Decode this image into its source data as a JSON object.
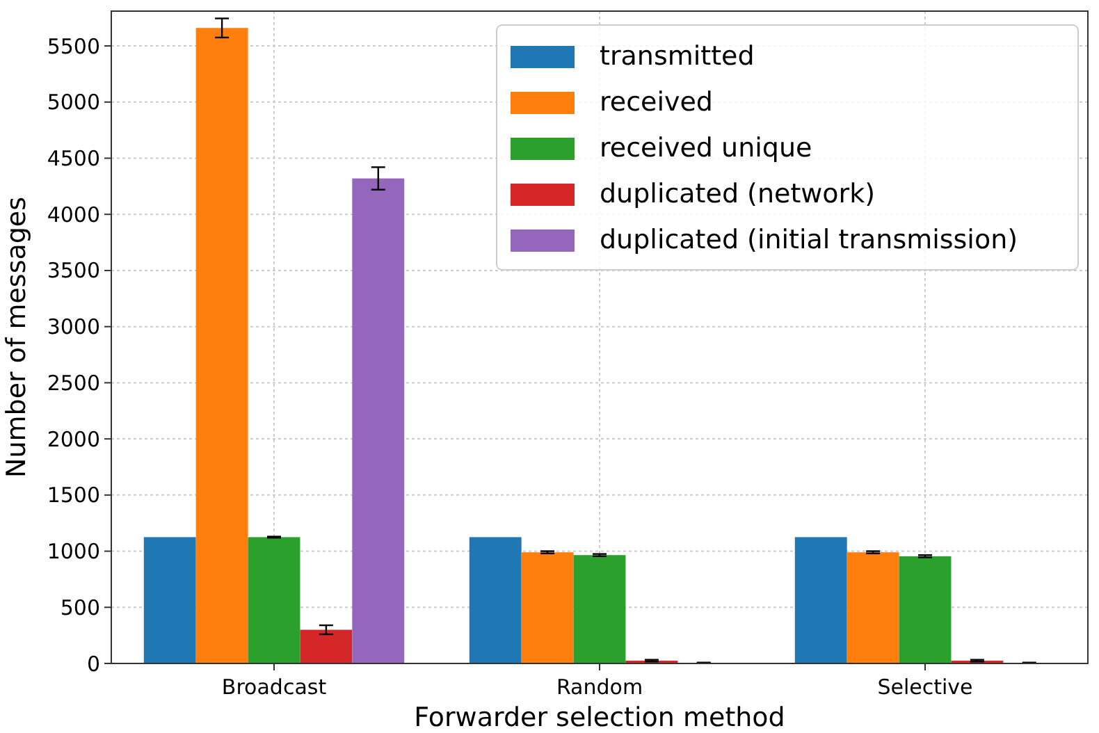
{
  "chart_data": {
    "type": "bar",
    "xlabel": "Forwarder selection method",
    "ylabel": "Number of messages",
    "categories": [
      "Broadcast",
      "Random",
      "Selective"
    ],
    "series": [
      {
        "name": "transmitted",
        "color": "#1f77b4",
        "values": [
          1125,
          1125,
          1125
        ]
      },
      {
        "name": "received",
        "color": "#ff7f0e",
        "values": [
          5660,
          990,
          990
        ],
        "errors": [
          85,
          10,
          10
        ]
      },
      {
        "name": "received unique",
        "color": "#2ca02c",
        "values": [
          1125,
          965,
          955
        ],
        "errors": [
          5,
          10,
          10
        ]
      },
      {
        "name": "duplicated (network)",
        "color": "#d62728",
        "values": [
          300,
          25,
          25
        ],
        "errors": [
          40,
          8,
          8
        ]
      },
      {
        "name": "duplicated (initial transmission)",
        "color": "#9467bd",
        "values": [
          4320,
          5,
          5
        ],
        "errors": [
          100,
          3,
          3
        ]
      }
    ],
    "ylim": [
      0,
      5810
    ],
    "yticks": [
      0,
      500,
      1000,
      1500,
      2000,
      2500,
      3000,
      3500,
      4000,
      4500,
      5000,
      5500
    ],
    "grid": true,
    "legend": "top right"
  }
}
